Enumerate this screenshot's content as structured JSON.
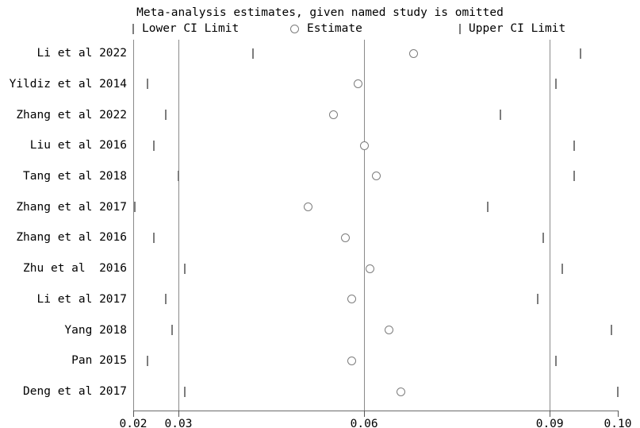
{
  "title": "Meta-analysis estimates, given named study is omitted",
  "legend": {
    "lower_label": "Lower CI Limit",
    "estimate_label": "Estimate",
    "upper_label": "Upper CI Limit"
  },
  "colors": {
    "background": "#ffffff",
    "text": "#000000",
    "marker": "#7d7d7d",
    "reference_line": "#8a8a8a",
    "axis": "#6b6b6b"
  },
  "chart_data": {
    "type": "scatter",
    "subtype": "leave-one-out-sensitivity-forest",
    "orientation": "horizontal",
    "title": "Meta-analysis estimates, given named study is omitted",
    "xlim": [
      0.0227,
      0.101
    ],
    "x_ticks": [
      {
        "label": "0.02",
        "value": 0.0227
      },
      {
        "label": "0.03",
        "value": 0.03
      },
      {
        "label": "0.06",
        "value": 0.06
      },
      {
        "label": "0.09",
        "value": 0.09
      },
      {
        "label": "0.10",
        "value": 0.101
      }
    ],
    "reference_lines": [
      0.03,
      0.06,
      0.09
    ],
    "grid": false,
    "legend_position": "top",
    "studies": [
      {
        "label": "Li et al 2022",
        "lower": 0.042,
        "estimate": 0.068,
        "upper": 0.095
      },
      {
        "label": "Yildiz et al 2014",
        "lower": 0.025,
        "estimate": 0.059,
        "upper": 0.091
      },
      {
        "label": "Zhang et al 2022",
        "lower": 0.028,
        "estimate": 0.055,
        "upper": 0.082
      },
      {
        "label": "Liu et al 2016",
        "lower": 0.026,
        "estimate": 0.06,
        "upper": 0.094
      },
      {
        "label": "Tang et al 2018",
        "lower": 0.03,
        "estimate": 0.062,
        "upper": 0.094
      },
      {
        "label": "Zhang et al 2017",
        "lower": 0.023,
        "estimate": 0.051,
        "upper": 0.08
      },
      {
        "label": "Zhang et al 2016",
        "lower": 0.026,
        "estimate": 0.057,
        "upper": 0.089
      },
      {
        "label": "Zhu et al  2016",
        "lower": 0.031,
        "estimate": 0.061,
        "upper": 0.092
      },
      {
        "label": "Li et al 2017",
        "lower": 0.028,
        "estimate": 0.058,
        "upper": 0.088
      },
      {
        "label": "Yang 2018",
        "lower": 0.029,
        "estimate": 0.064,
        "upper": 0.1
      },
      {
        "label": "Pan 2015",
        "lower": 0.025,
        "estimate": 0.058,
        "upper": 0.091
      },
      {
        "label": "Deng et al 2017",
        "lower": 0.031,
        "estimate": 0.066,
        "upper": 0.101
      }
    ]
  }
}
